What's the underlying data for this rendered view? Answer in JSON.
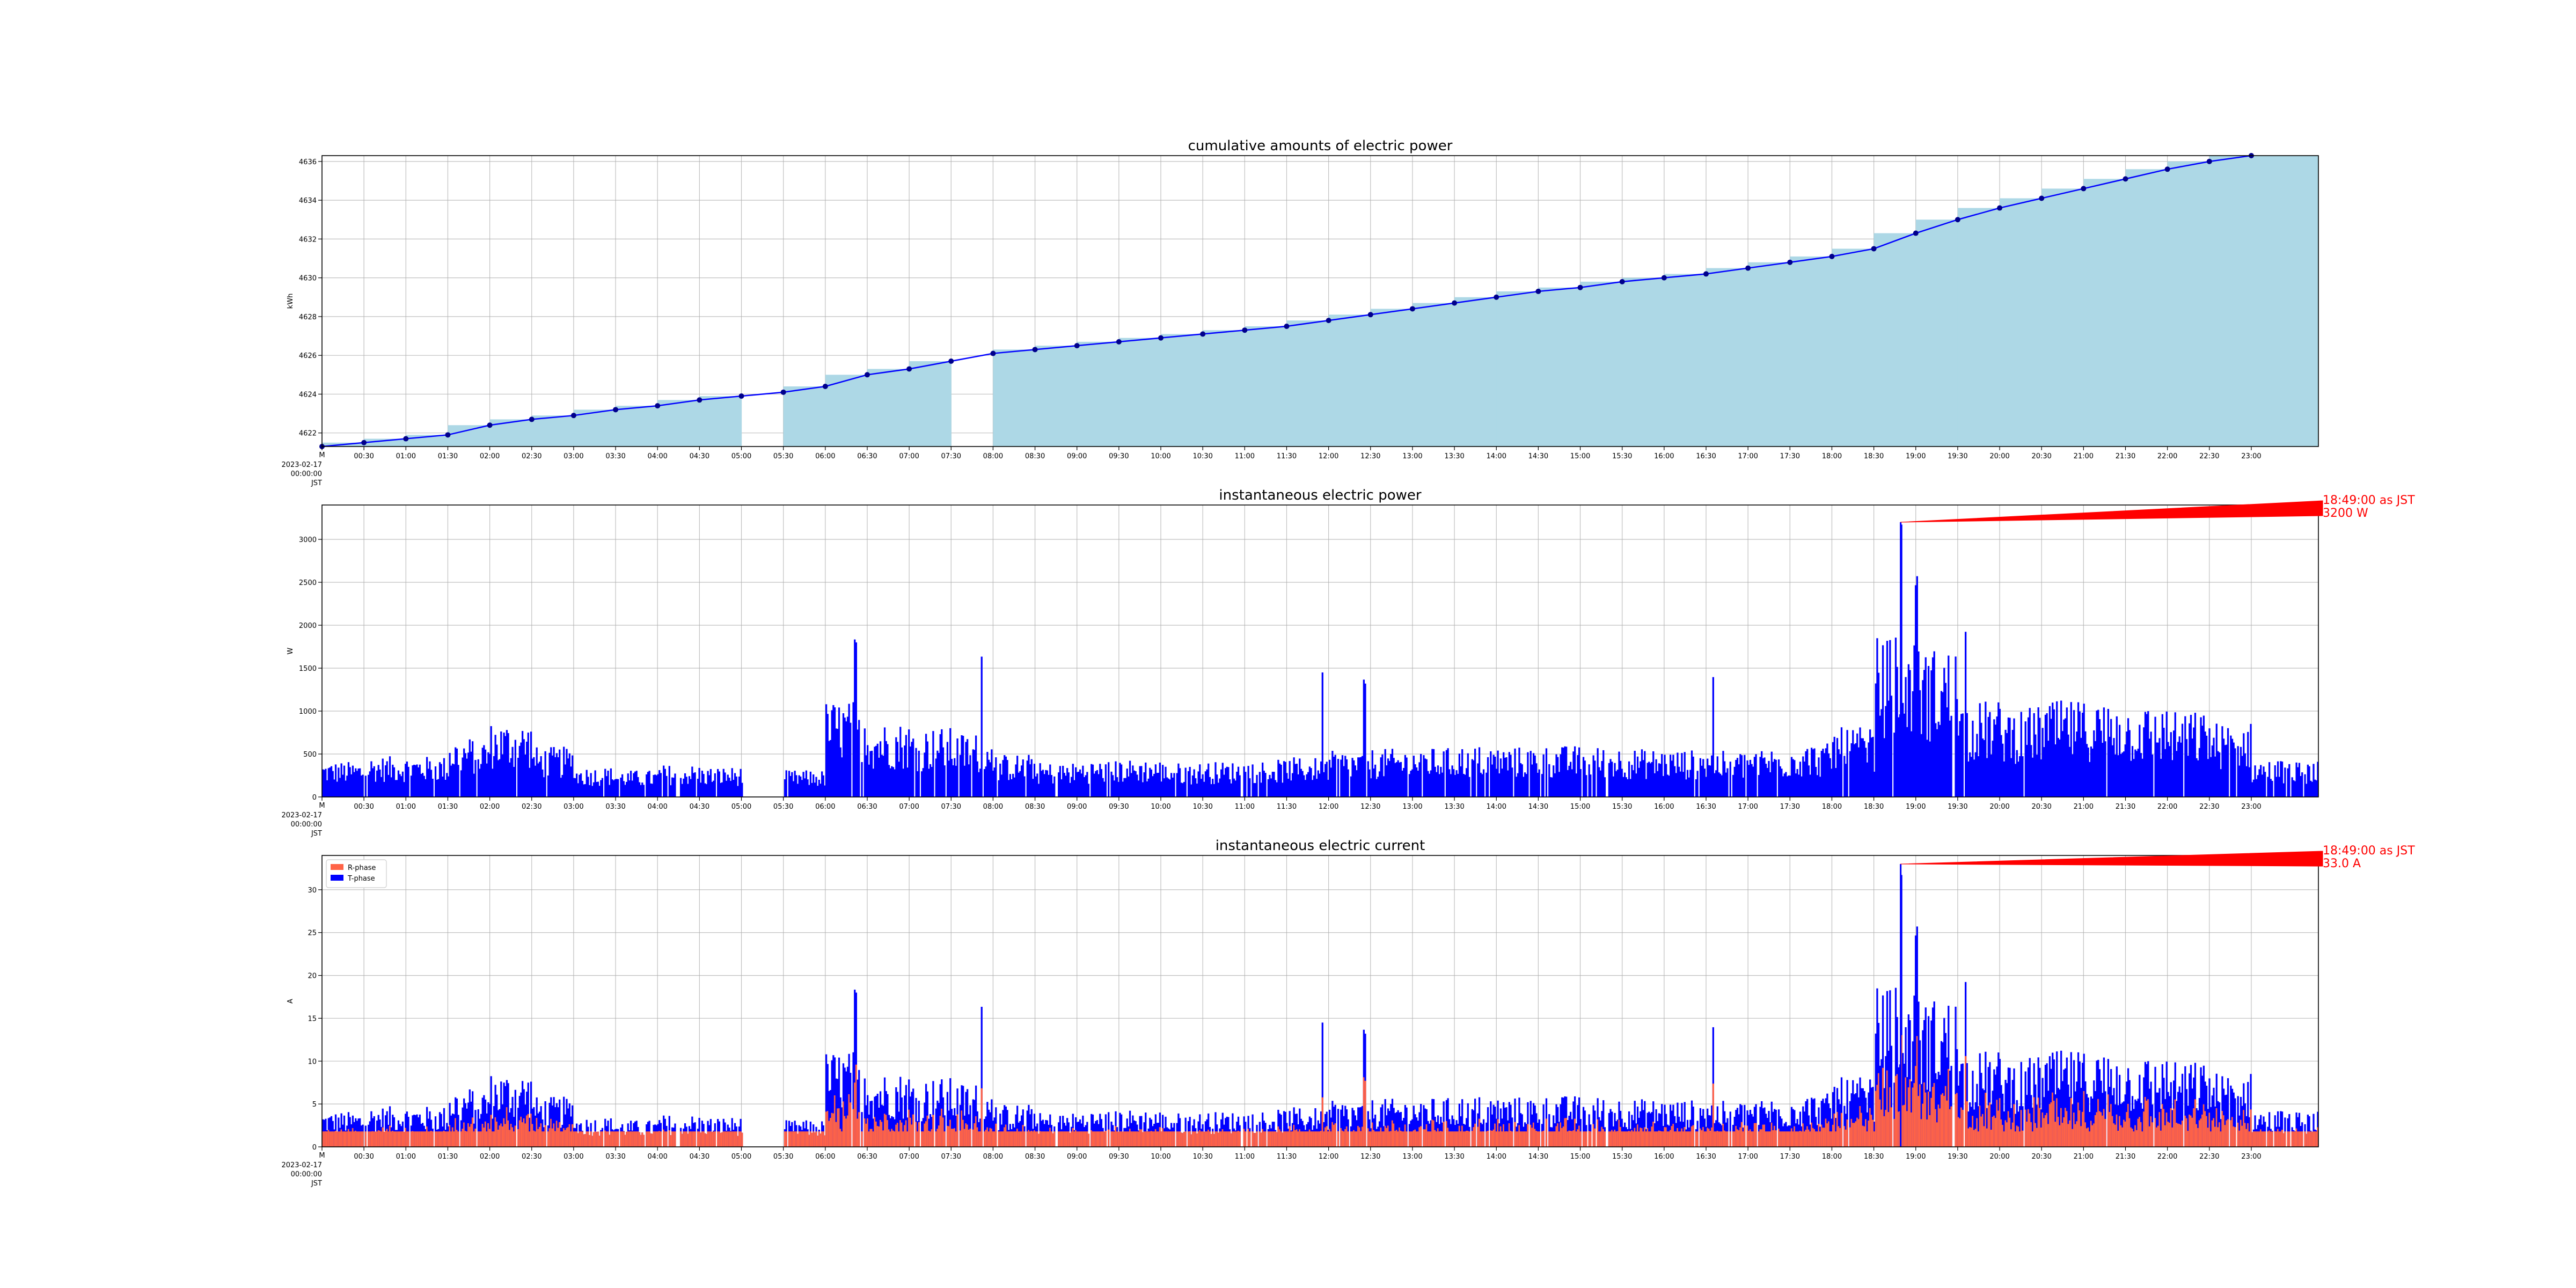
{
  "chart_data": [
    {
      "type": "area",
      "title": "cumulative amounts of electric power",
      "ylabel": "kWh",
      "xlabel": "",
      "ylim": [
        4621.3,
        4636.3
      ],
      "yticks": [
        4622,
        4624,
        4626,
        4628,
        4630,
        4632,
        4634,
        4636
      ],
      "grid": true,
      "colors": {
        "fill": "#add8e6",
        "line": "#0000ff",
        "marker": "#00008b"
      },
      "x_hours": [
        0,
        0.5,
        1,
        1.5,
        2,
        2.5,
        3,
        3.5,
        4,
        4.5,
        5,
        5.5,
        6,
        6.5,
        7,
        7.5,
        8,
        8.5,
        9,
        9.5,
        10,
        10.5,
        11,
        11.5,
        12,
        12.5,
        13,
        13.5,
        14,
        14.5,
        15,
        15.5,
        16,
        16.5,
        17,
        17.5,
        18,
        18.5,
        19,
        19.5,
        20,
        20.5,
        21,
        21.5,
        22,
        22.5,
        23
      ],
      "values": [
        4621.3,
        4621.5,
        4621.7,
        4621.9,
        4622.4,
        4622.7,
        4622.9,
        4623.2,
        4623.4,
        4623.7,
        4623.9,
        4624.1,
        4624.4,
        4625.0,
        4625.3,
        4625.7,
        4626.1,
        4626.3,
        4626.5,
        4626.7,
        4626.9,
        4627.1,
        4627.3,
        4627.5,
        4627.8,
        4628.1,
        4628.4,
        4628.7,
        4629.0,
        4629.3,
        4629.5,
        4629.8,
        4630.0,
        4630.2,
        4630.5,
        4630.8,
        4631.1,
        4631.5,
        4632.3,
        4633.0,
        4633.6,
        4634.1,
        4634.6,
        4635.1,
        4635.6,
        4636.0,
        4636.3
      ],
      "step_gaps": [
        10,
        15
      ],
      "x_start": "2023-02-17\n00:00:00\nJST"
    },
    {
      "type": "bar",
      "title": "instantaneous electric power",
      "ylabel": "W",
      "xlabel": "",
      "ylim": [
        0,
        3400
      ],
      "yticks": [
        0,
        500,
        1000,
        1500,
        2000,
        2500,
        3000
      ],
      "grid": true,
      "color": "#0000ff",
      "annotation": {
        "line1": "18:49:00 as JST",
        "line2": "3200 W",
        "x_hour": 18.817,
        "y": 3200,
        "color": "#ff0000"
      },
      "hourly_levels_w": [
        330,
        380,
        380,
        560,
        700,
        470,
        280,
        250,
        300,
        280,
        0,
        250,
        900,
        700,
        650,
        600,
        400,
        320,
        340,
        350,
        320,
        330,
        350,
        370,
        430,
        450,
        460,
        480,
        470,
        480,
        470,
        450,
        440,
        430,
        460,
        500,
        650,
        1500,
        1400,
        900,
        850,
        900,
        900,
        850,
        800,
        700,
        350,
        330
      ],
      "spikes": [
        {
          "x_hour": 6.35,
          "y": 1850
        },
        {
          "x_hour": 7.85,
          "y": 1700
        },
        {
          "x_hour": 11.92,
          "y": 1580
        },
        {
          "x_hour": 12.42,
          "y": 1380
        },
        {
          "x_hour": 16.58,
          "y": 1480
        },
        {
          "x_hour": 18.817,
          "y": 3200
        },
        {
          "x_hour": 19.0,
          "y": 2650
        },
        {
          "x_hour": 19.58,
          "y": 2100
        }
      ],
      "x_start": "2023-02-17\n00:00:00\nJST"
    },
    {
      "type": "bar",
      "title": "instantaneous electric current",
      "ylabel": "A",
      "xlabel": "",
      "ylim": [
        0,
        34
      ],
      "yticks": [
        0,
        5,
        10,
        15,
        20,
        25,
        30
      ],
      "grid": true,
      "legend": {
        "placement": "upper-left"
      },
      "series": [
        {
          "name": "R-phase",
          "color": "#ff6347"
        },
        {
          "name": "T-phase",
          "color": "#0000ff"
        }
      ],
      "annotation": {
        "line1": "18:49:00 as JST",
        "line2": "33.0 A",
        "x_hour": 18.817,
        "y": 33.0,
        "color": "#ff0000"
      },
      "x_start": "2023-02-17\n00:00:00\nJST"
    }
  ],
  "x_tick_labels": [
    "00:30",
    "01:00",
    "01:30",
    "02:00",
    "02:30",
    "03:00",
    "03:30",
    "04:00",
    "04:30",
    "05:00",
    "05:30",
    "06:00",
    "06:30",
    "07:00",
    "07:30",
    "08:00",
    "08:30",
    "09:00",
    "09:30",
    "10:00",
    "10:30",
    "11:00",
    "11:30",
    "12:00",
    "12:30",
    "13:00",
    "13:30",
    "14:00",
    "14:30",
    "15:00",
    "15:30",
    "16:00",
    "16:30",
    "17:00",
    "17:30",
    "18:00",
    "18:30",
    "19:00",
    "19:30",
    "20:00",
    "20:30",
    "21:00",
    "21:30",
    "22:00",
    "22:30",
    "23:00"
  ],
  "x_start_label_lines": [
    "2023-02-17",
    "00:00:00",
    "JST"
  ]
}
